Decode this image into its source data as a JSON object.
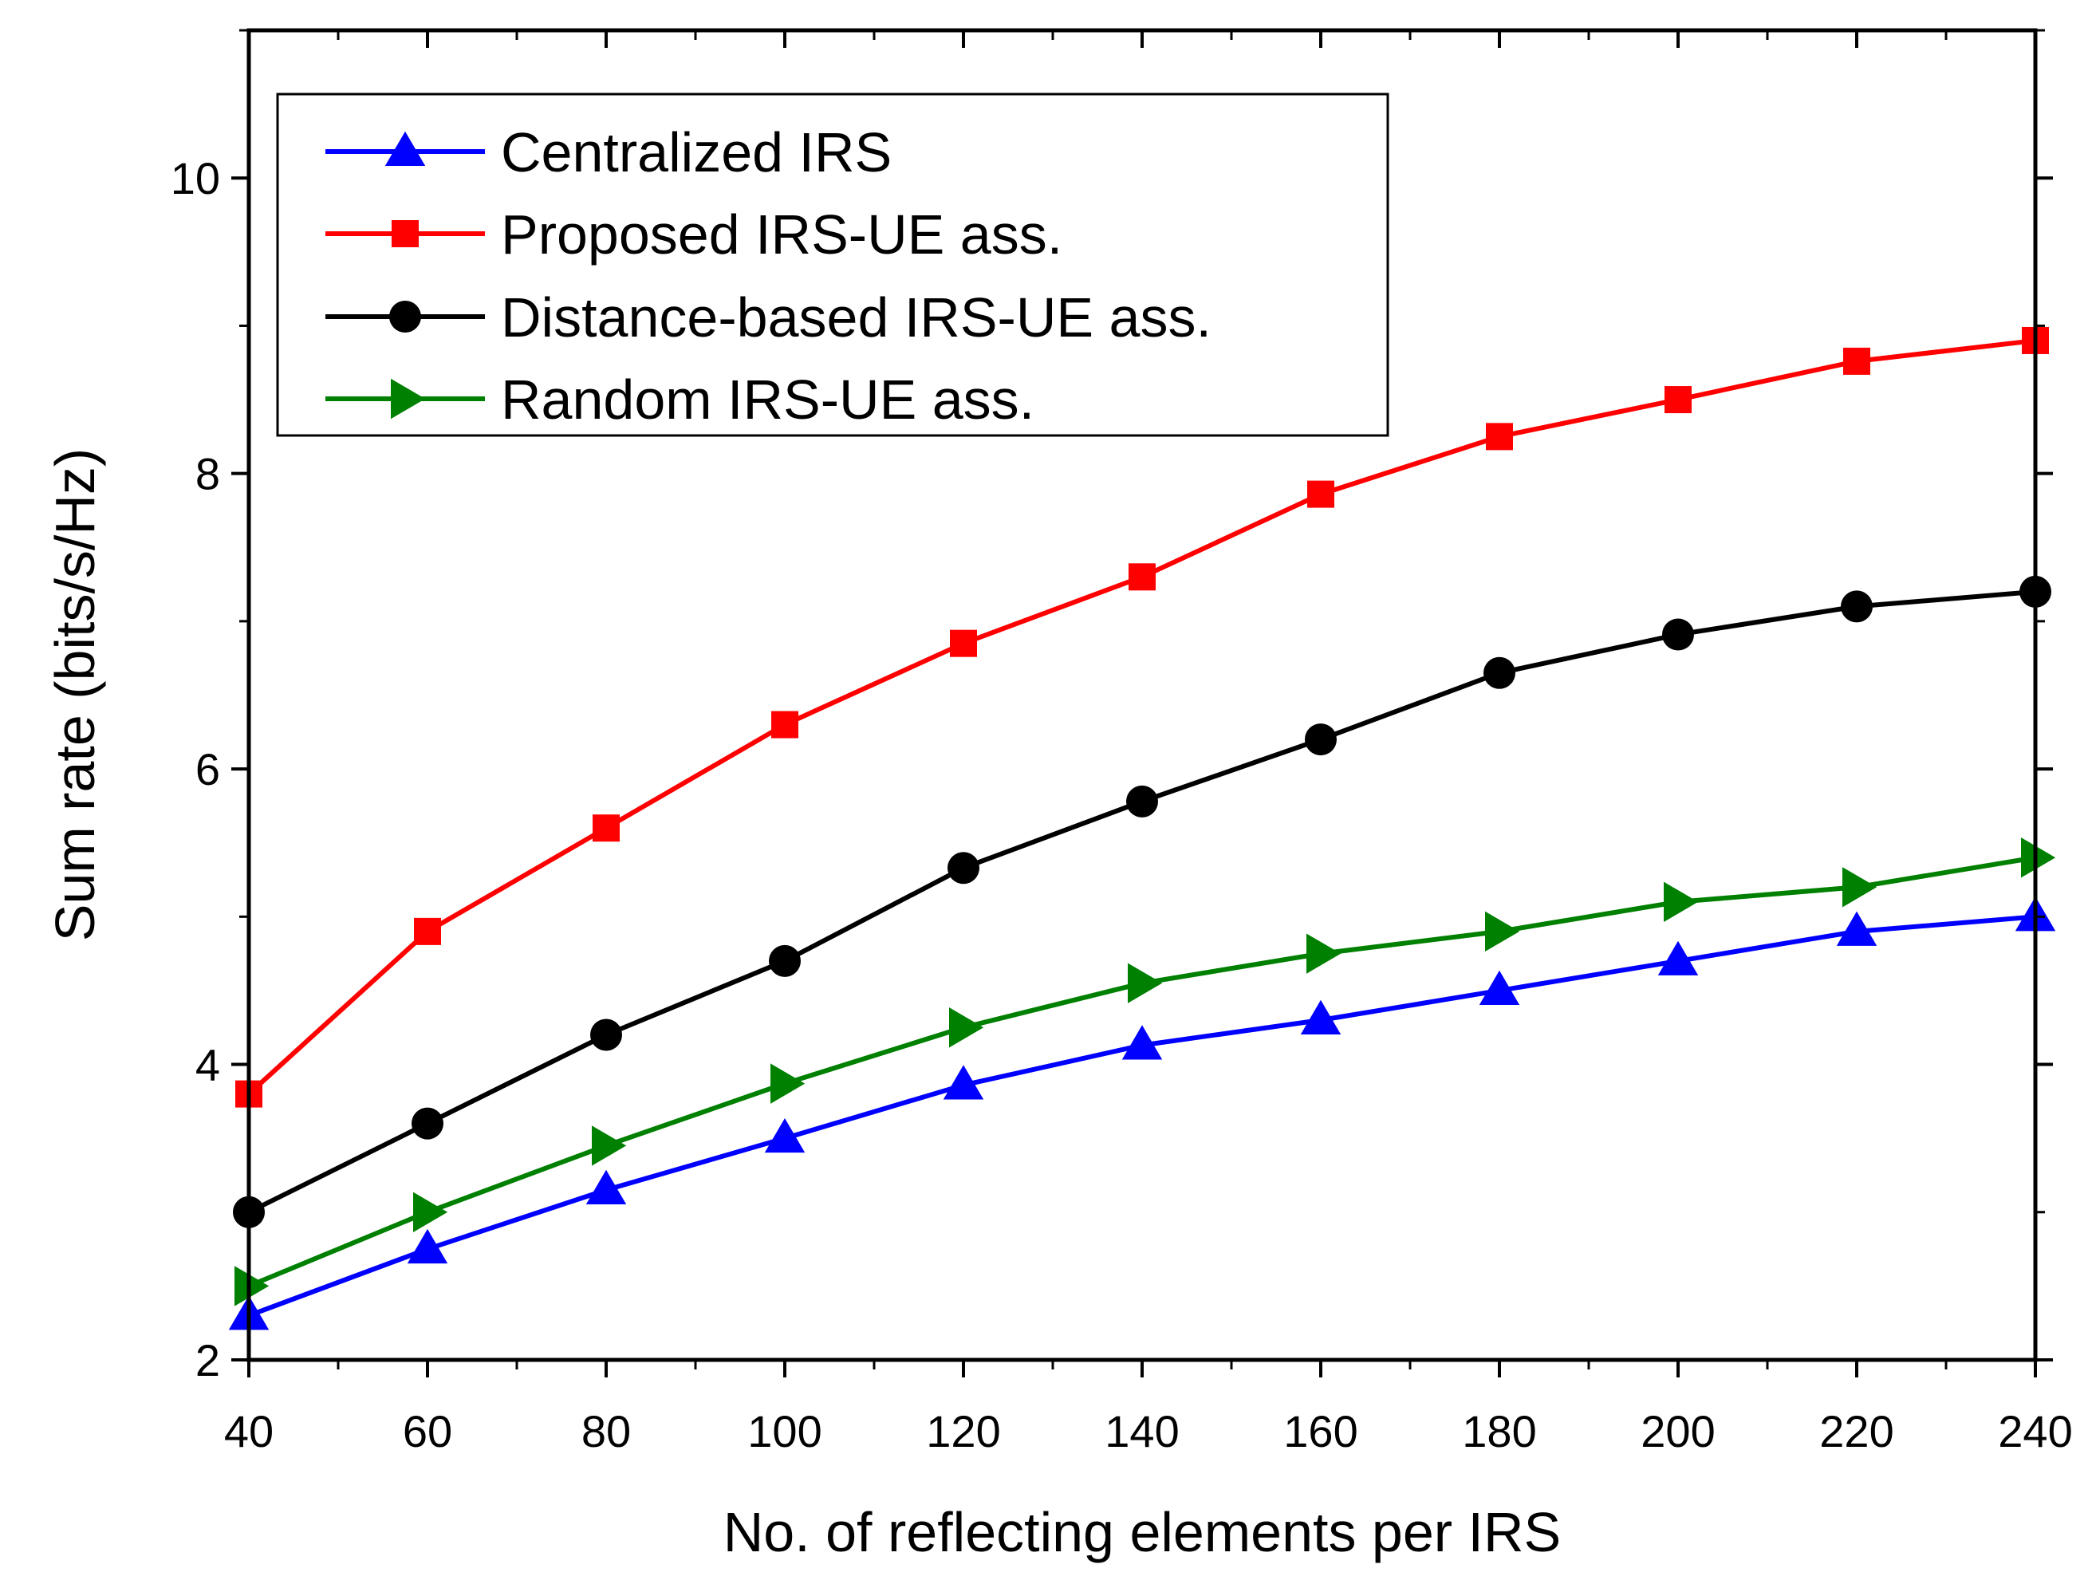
{
  "chart_data": {
    "type": "line",
    "title": "",
    "xlabel": "No. of reflecting elements per IRS",
    "ylabel": "Sum rate (bits/s/Hz)",
    "xlim": [
      40,
      240
    ],
    "ylim": [
      2,
      11
    ],
    "x_ticks": [
      40,
      60,
      80,
      100,
      120,
      140,
      160,
      180,
      200,
      220,
      240
    ],
    "y_ticks": [
      2,
      4,
      6,
      8,
      10
    ],
    "x_tick_labels": [
      "40",
      "60",
      "80",
      "100",
      "120",
      "140",
      "160",
      "180",
      "200",
      "220",
      "240"
    ],
    "y_tick_labels": [
      "2",
      "4",
      "6",
      "8",
      "10"
    ],
    "grid": false,
    "legend_position": "top-left",
    "x": [
      40,
      60,
      80,
      100,
      120,
      140,
      160,
      180,
      200,
      220,
      240
    ],
    "series": [
      {
        "name": "Centralized IRS",
        "color": "#0000ff",
        "marker": "triangle-up",
        "values": [
          2.3,
          2.75,
          3.15,
          3.5,
          3.86,
          4.13,
          4.3,
          4.5,
          4.7,
          4.9,
          5.0
        ]
      },
      {
        "name": "Proposed IRS-UE ass.",
        "color": "#ff0000",
        "marker": "square",
        "values": [
          3.8,
          4.9,
          5.6,
          6.3,
          6.85,
          7.3,
          7.86,
          8.25,
          8.5,
          8.76,
          8.9
        ]
      },
      {
        "name": "Distance-based IRS-UE ass.",
        "color": "#000000",
        "marker": "circle",
        "values": [
          3.0,
          3.6,
          4.2,
          4.7,
          5.33,
          5.78,
          6.2,
          6.65,
          6.91,
          7.1,
          7.2
        ]
      },
      {
        "name": "Random IRS-UE ass.",
        "color": "#008000",
        "marker": "triangle-right",
        "values": [
          2.5,
          3.0,
          3.45,
          3.87,
          4.25,
          4.55,
          4.75,
          4.9,
          5.1,
          5.2,
          5.4
        ]
      }
    ]
  }
}
